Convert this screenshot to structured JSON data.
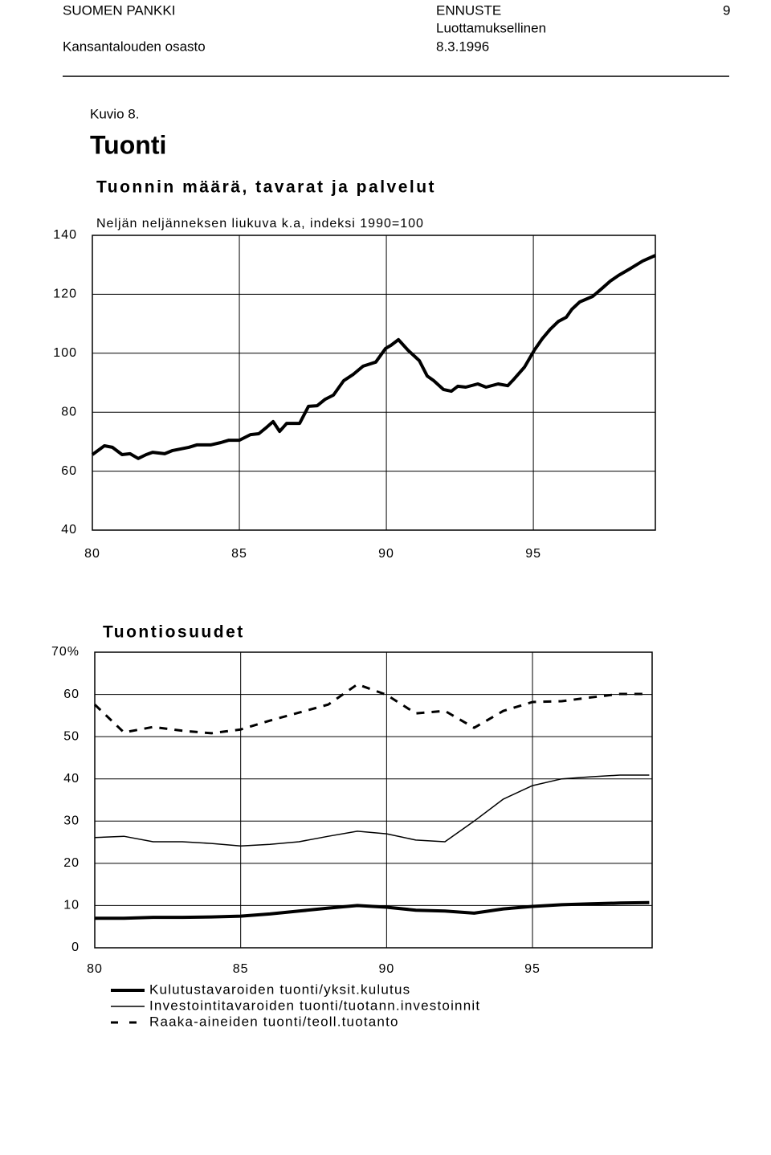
{
  "header": {
    "organization": "SUOMEN PANKKI",
    "department": "Kansantalouden osasto",
    "document_type": "ENNUSTE",
    "classification": "Luottamuksellinen",
    "date": "8.3.1996",
    "page": "9"
  },
  "figure": {
    "label": "Kuvio 8.",
    "title": "Tuonti"
  },
  "chart_data": [
    {
      "type": "line",
      "title": "Tuonnin määrä, tavarat ja palvelut",
      "subtitle": "Neljän neljänneksen liukuva k.a, indeksi 1990=100",
      "x": [
        80.0,
        80.41,
        80.68,
        81.01,
        81.28,
        81.56,
        81.83,
        82.05,
        82.46,
        82.73,
        83.28,
        83.55,
        84.02,
        84.37,
        84.64,
        85.0,
        85.38,
        85.66,
        85.93,
        86.15,
        86.37,
        86.61,
        87.05,
        87.35,
        87.65,
        87.92,
        88.2,
        88.55,
        88.88,
        89.21,
        89.64,
        89.97,
        90.16,
        90.41,
        90.74,
        91.12,
        91.39,
        91.61,
        91.94,
        92.21,
        92.43,
        92.7,
        93.11,
        93.39,
        93.8,
        94.13,
        94.34,
        94.7,
        95.03,
        95.3,
        95.57,
        95.85,
        96.12,
        96.31,
        96.58,
        97.02,
        97.3,
        97.62,
        97.9,
        98.31,
        98.72,
        99.15
      ],
      "values": [
        65.6,
        68.6,
        68.1,
        65.6,
        65.9,
        64.3,
        65.6,
        66.4,
        65.9,
        67.0,
        68.1,
        68.9,
        68.9,
        69.7,
        70.5,
        70.5,
        72.4,
        72.7,
        74.9,
        76.8,
        73.5,
        76.2,
        76.2,
        82.0,
        82.2,
        84.4,
        85.8,
        90.7,
        92.9,
        95.6,
        97.0,
        101.6,
        102.7,
        104.6,
        101.0,
        97.5,
        92.3,
        90.7,
        87.7,
        87.1,
        88.8,
        88.5,
        89.6,
        88.5,
        89.6,
        89.0,
        91.2,
        95.3,
        101.0,
        104.9,
        108.1,
        110.8,
        112.2,
        114.9,
        117.4,
        119.3,
        121.7,
        124.5,
        126.4,
        128.8,
        131.3,
        133.2
      ],
      "color": "#000000",
      "linewidth": 4,
      "xlim": [
        80,
        99.15
      ],
      "xticks": [
        80,
        85,
        90,
        95
      ],
      "ylim": [
        40,
        140
      ],
      "yticks": [
        40,
        60,
        80,
        100,
        120,
        140
      ],
      "grid": true
    },
    {
      "type": "line",
      "title": "Tuontiosuudet",
      "x": [
        80,
        81,
        82,
        83,
        84,
        85,
        86,
        87,
        88,
        89,
        90,
        91,
        92,
        93,
        94,
        95,
        96,
        97,
        98,
        99
      ],
      "series": [
        {
          "name": "Kulutustavaroiden tuonti/yksit.kulutus",
          "color": "#000000",
          "linewidth": 4,
          "dashed": false,
          "values": [
            7.0,
            7.0,
            7.2,
            7.2,
            7.3,
            7.5,
            8.0,
            8.7,
            9.4,
            10.0,
            9.6,
            8.9,
            8.7,
            8.2,
            9.2,
            9.8,
            10.2,
            10.4,
            10.6,
            10.7
          ]
        },
        {
          "name": "Investointitavaroiden tuonti/tuotann.investoinnit",
          "color": "#000000",
          "linewidth": 1.5,
          "dashed": false,
          "values": [
            26.1,
            26.4,
            25.1,
            25.1,
            24.7,
            24.1,
            24.5,
            25.1,
            26.4,
            27.6,
            27.0,
            25.5,
            25.1,
            30.0,
            35.2,
            38.4,
            40.0,
            40.5,
            40.9,
            40.9
          ]
        },
        {
          "name": "Raaka-aineiden tuonti/teoll.tuotanto",
          "color": "#000000",
          "linewidth": 3,
          "dashed": true,
          "values": [
            57.6,
            51.0,
            52.3,
            51.4,
            50.8,
            51.7,
            53.8,
            55.7,
            57.6,
            62.4,
            59.9,
            55.5,
            56.1,
            52.1,
            56.1,
            58.2,
            58.4,
            59.3,
            60.1,
            60.1
          ]
        }
      ],
      "xlim": [
        80,
        99.1
      ],
      "xticks": [
        80,
        85,
        90,
        95
      ],
      "ylim": [
        0,
        70
      ],
      "yticks": [
        0,
        10,
        20,
        30,
        40,
        50,
        60,
        {
          "value": 70,
          "label": "70%"
        }
      ],
      "grid": true
    }
  ]
}
